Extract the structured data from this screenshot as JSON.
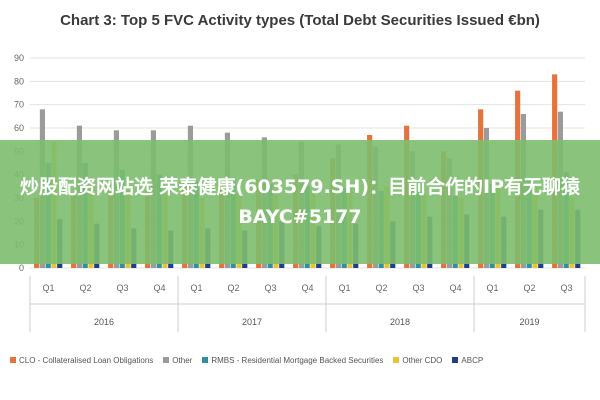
{
  "banner": {
    "text": "炒股配资网站选 荣泰健康(603579.SH)：目前合作的IP有无聊猿BAYC#5177"
  },
  "chart_data": {
    "type": "bar",
    "title": "Chart 3: Top 5 FVC Activity types (Total Debt Securities Issued €bn)",
    "xlabel": "",
    "ylabel": "",
    "ylim": [
      0,
      90
    ],
    "yticks": [
      0,
      10,
      20,
      30,
      40,
      50,
      60,
      70,
      80,
      90
    ],
    "grid": true,
    "legend_position": "bottom",
    "categories": [
      "Q1",
      "Q2",
      "Q3",
      "Q4",
      "Q1",
      "Q2",
      "Q3",
      "Q4",
      "Q1",
      "Q2",
      "Q3",
      "Q4",
      "Q1",
      "Q2",
      "Q3"
    ],
    "year_groups": [
      {
        "label": "2016",
        "count": 4
      },
      {
        "label": "2017",
        "count": 4
      },
      {
        "label": "2018",
        "count": 4
      },
      {
        "label": "2019",
        "count": 3
      }
    ],
    "series": [
      {
        "name": "CLO - Collateralised Loan Obligations",
        "color": "#e5733c",
        "values": [
          30,
          32,
          34,
          33,
          35,
          36,
          38,
          40,
          47,
          57,
          61,
          50,
          68,
          76,
          83
        ]
      },
      {
        "name": "Other",
        "color": "#9b9b9b",
        "values": [
          68,
          61,
          59,
          59,
          61,
          58,
          56,
          54,
          53,
          52,
          50,
          47,
          60,
          66,
          67
        ]
      },
      {
        "name": "RMBS - Residential Mortgage Backed Securities",
        "color": "#2f8fa0",
        "values": [
          45,
          45,
          42,
          40,
          37,
          38,
          36,
          35,
          34,
          33,
          32,
          31,
          36,
          38,
          41
        ]
      },
      {
        "name": "Other CDO",
        "color": "#e8c33a",
        "values": [
          54,
          36,
          33,
          32,
          30,
          32,
          34,
          32,
          33,
          35,
          31,
          30,
          35,
          36,
          30
        ]
      },
      {
        "name": "ABCP",
        "color": "#1f3f8a",
        "values": [
          21,
          19,
          17,
          16,
          17,
          16,
          20,
          18,
          19,
          20,
          22,
          23,
          22,
          25,
          25
        ]
      }
    ]
  }
}
